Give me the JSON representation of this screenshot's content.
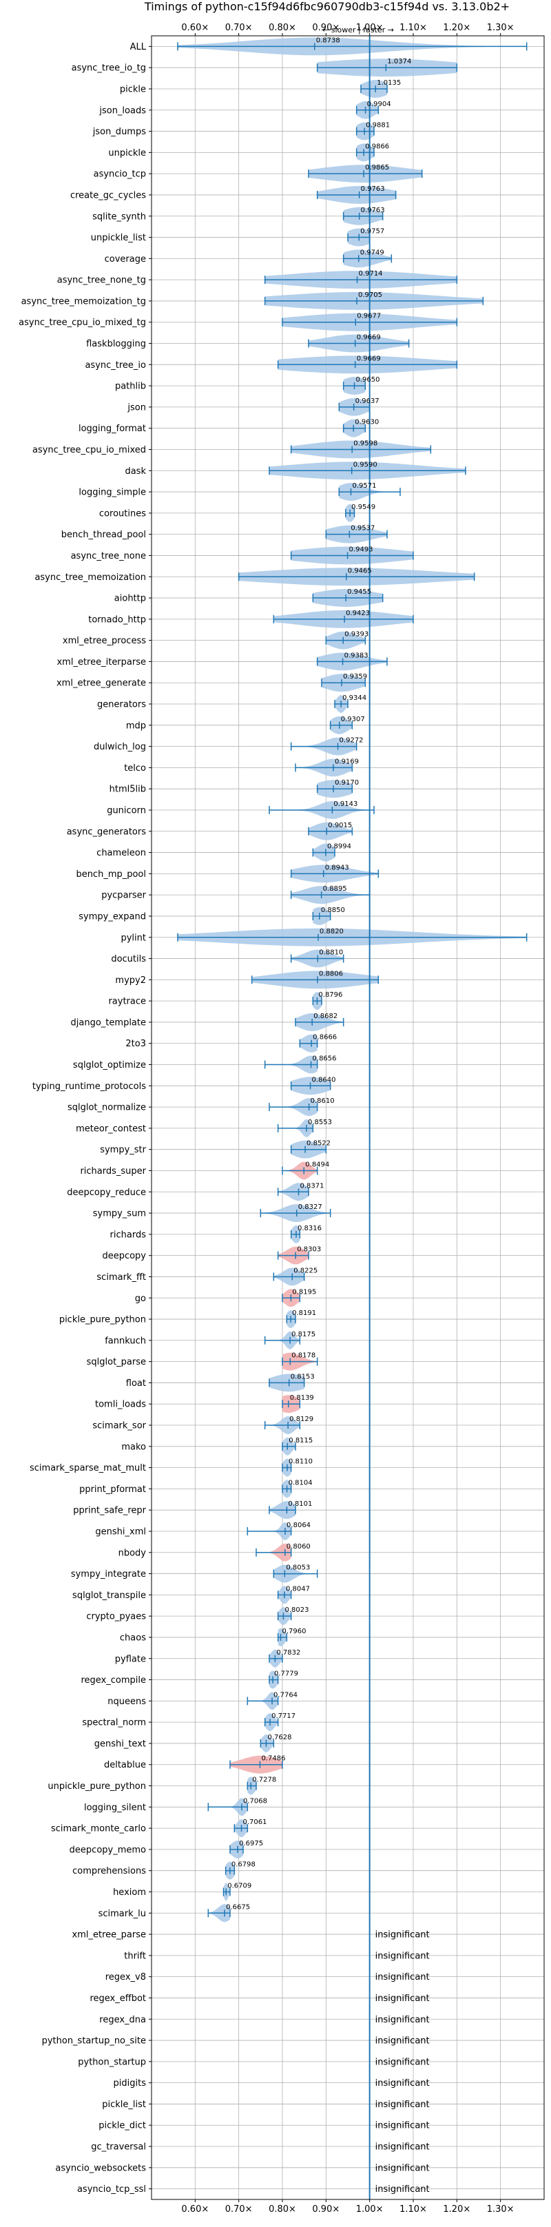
{
  "chart_data": {
    "type": "violin",
    "title": "Timings of python-c15f94d6fbc960790db3-c15f94d vs. 3.13.0b2+",
    "subtitle": "← slower | faster →",
    "xlim": [
      0.5,
      1.4
    ],
    "xticks": [
      0.6,
      0.7,
      0.8,
      0.9,
      1.0,
      1.1,
      1.2,
      1.3
    ],
    "xtick_labels": [
      "0.60×",
      "0.70×",
      "0.80×",
      "0.90×",
      "1.00×",
      "1.10×",
      "1.20×",
      "1.30×"
    ],
    "reference_line": 1.0,
    "grid": true,
    "colors": {
      "faster": "#a8c8e8",
      "slower": "#f2aaaa",
      "line": "#1f77b4",
      "grid": "#b0b0b0"
    },
    "insignificant_label": "insignificant",
    "benchmarks": [
      {
        "name": "ALL",
        "value": 0.8738,
        "label": "0.8738",
        "lo": 0.56,
        "hi": 1.36,
        "spread": 0.16,
        "sig": true
      },
      {
        "name": "async_tree_io_tg",
        "value": 1.0374,
        "label": "1.0374",
        "lo": 0.88,
        "hi": 1.2,
        "spread": 0.16,
        "sig": true
      },
      {
        "name": "pickle",
        "value": 1.0135,
        "label": "1.0135",
        "lo": 0.98,
        "hi": 1.04,
        "spread": 0.03,
        "sig": true
      },
      {
        "name": "json_loads",
        "value": 0.9904,
        "label": "0.9904",
        "lo": 0.97,
        "hi": 1.02,
        "spread": 0.02,
        "sig": true
      },
      {
        "name": "json_dumps",
        "value": 0.9881,
        "label": "0.9881",
        "lo": 0.97,
        "hi": 1.01,
        "spread": 0.02,
        "sig": true
      },
      {
        "name": "unpickle",
        "value": 0.9866,
        "label": "0.9866",
        "lo": 0.97,
        "hi": 1.01,
        "spread": 0.02,
        "sig": true
      },
      {
        "name": "asyncio_tcp",
        "value": 0.9865,
        "label": "0.9865",
        "lo": 0.86,
        "hi": 1.12,
        "spread": 0.1,
        "sig": true
      },
      {
        "name": "create_gc_cycles",
        "value": 0.9763,
        "label": "0.9763",
        "lo": 0.88,
        "hi": 1.06,
        "spread": 0.07,
        "sig": true
      },
      {
        "name": "sqlite_synth",
        "value": 0.9763,
        "label": "0.9763",
        "lo": 0.94,
        "hi": 1.03,
        "spread": 0.04,
        "sig": true
      },
      {
        "name": "unpickle_list",
        "value": 0.9757,
        "label": "0.9757",
        "lo": 0.95,
        "hi": 1.0,
        "spread": 0.03,
        "sig": true
      },
      {
        "name": "coverage",
        "value": 0.9749,
        "label": "0.9749",
        "lo": 0.94,
        "hi": 1.05,
        "spread": 0.04,
        "sig": true
      },
      {
        "name": "async_tree_none_tg",
        "value": 0.9714,
        "label": "0.9714",
        "lo": 0.76,
        "hi": 1.2,
        "spread": 0.16,
        "sig": true
      },
      {
        "name": "async_tree_memoization_tg",
        "value": 0.9705,
        "label": "0.9705",
        "lo": 0.76,
        "hi": 1.26,
        "spread": 0.18,
        "sig": true
      },
      {
        "name": "async_tree_cpu_io_mixed_tg",
        "value": 0.9677,
        "label": "0.9677",
        "lo": 0.8,
        "hi": 1.2,
        "spread": 0.14,
        "sig": true
      },
      {
        "name": "flaskblogging",
        "value": 0.9669,
        "label": "0.9669",
        "lo": 0.86,
        "hi": 1.09,
        "spread": 0.07,
        "sig": true
      },
      {
        "name": "async_tree_io",
        "value": 0.9669,
        "label": "0.9669",
        "lo": 0.79,
        "hi": 1.2,
        "spread": 0.17,
        "sig": true
      },
      {
        "name": "pathlib",
        "value": 0.965,
        "label": "0.9650",
        "lo": 0.94,
        "hi": 0.99,
        "spread": 0.03,
        "sig": true
      },
      {
        "name": "json",
        "value": 0.9637,
        "label": "0.9637",
        "lo": 0.93,
        "hi": 1.0,
        "spread": 0.03,
        "sig": true
      },
      {
        "name": "logging_format",
        "value": 0.963,
        "label": "0.9630",
        "lo": 0.94,
        "hi": 0.99,
        "spread": 0.02,
        "sig": true
      },
      {
        "name": "async_tree_cpu_io_mixed",
        "value": 0.9598,
        "label": "0.9598",
        "lo": 0.82,
        "hi": 1.14,
        "spread": 0.1,
        "sig": true
      },
      {
        "name": "dask",
        "value": 0.959,
        "label": "0.9590",
        "lo": 0.77,
        "hi": 1.22,
        "spread": 0.15,
        "sig": true
      },
      {
        "name": "logging_simple",
        "value": 0.9571,
        "label": "0.9571",
        "lo": 0.93,
        "hi": 1.07,
        "spread": 0.03,
        "sig": true
      },
      {
        "name": "coroutines",
        "value": 0.9549,
        "label": "0.9549",
        "lo": 0.945,
        "hi": 0.965,
        "spread": 0.01,
        "sig": true
      },
      {
        "name": "bench_thread_pool",
        "value": 0.9537,
        "label": "0.9537",
        "lo": 0.9,
        "hi": 1.04,
        "spread": 0.05,
        "sig": true
      },
      {
        "name": "async_tree_none",
        "value": 0.9493,
        "label": "0.9493",
        "lo": 0.82,
        "hi": 1.1,
        "spread": 0.12,
        "sig": true
      },
      {
        "name": "async_tree_memoization",
        "value": 0.9465,
        "label": "0.9465",
        "lo": 0.7,
        "hi": 1.24,
        "spread": 0.2,
        "sig": true
      },
      {
        "name": "aiohttp",
        "value": 0.9455,
        "label": "0.9455",
        "lo": 0.87,
        "hi": 1.03,
        "spread": 0.07,
        "sig": true
      },
      {
        "name": "tornado_http",
        "value": 0.9423,
        "label": "0.9423",
        "lo": 0.78,
        "hi": 1.1,
        "spread": 0.11,
        "sig": true
      },
      {
        "name": "xml_etree_process",
        "value": 0.9393,
        "label": "0.9393",
        "lo": 0.9,
        "hi": 0.99,
        "spread": 0.03,
        "sig": true
      },
      {
        "name": "xml_etree_iterparse",
        "value": 0.9383,
        "label": "0.9383",
        "lo": 0.88,
        "hi": 1.04,
        "spread": 0.05,
        "sig": true
      },
      {
        "name": "xml_etree_generate",
        "value": 0.9359,
        "label": "0.9359",
        "lo": 0.89,
        "hi": 0.99,
        "spread": 0.04,
        "sig": true
      },
      {
        "name": "generators",
        "value": 0.9344,
        "label": "0.9344",
        "lo": 0.92,
        "hi": 0.95,
        "spread": 0.01,
        "sig": true
      },
      {
        "name": "mdp",
        "value": 0.9307,
        "label": "0.9307",
        "lo": 0.91,
        "hi": 0.96,
        "spread": 0.02,
        "sig": true
      },
      {
        "name": "dulwich_log",
        "value": 0.9272,
        "label": "0.9272",
        "lo": 0.82,
        "hi": 0.97,
        "spread": 0.03,
        "sig": true
      },
      {
        "name": "telco",
        "value": 0.9169,
        "label": "0.9169",
        "lo": 0.83,
        "hi": 0.96,
        "spread": 0.03,
        "sig": true
      },
      {
        "name": "html5lib",
        "value": 0.917,
        "label": "0.9170",
        "lo": 0.88,
        "hi": 0.96,
        "spread": 0.04,
        "sig": true
      },
      {
        "name": "gunicorn",
        "value": 0.9143,
        "label": "0.9143",
        "lo": 0.77,
        "hi": 1.01,
        "spread": 0.03,
        "sig": true
      },
      {
        "name": "async_generators",
        "value": 0.9015,
        "label": "0.9015",
        "lo": 0.86,
        "hi": 0.96,
        "spread": 0.03,
        "sig": true
      },
      {
        "name": "chameleon",
        "value": 0.8994,
        "label": "0.8994",
        "lo": 0.87,
        "hi": 0.92,
        "spread": 0.02,
        "sig": true
      },
      {
        "name": "bench_mp_pool",
        "value": 0.8943,
        "label": "0.8943",
        "lo": 0.82,
        "hi": 1.02,
        "spread": 0.06,
        "sig": true
      },
      {
        "name": "pycparser",
        "value": 0.8895,
        "label": "0.8895",
        "lo": 0.82,
        "hi": 1.0,
        "spread": 0.04,
        "sig": true
      },
      {
        "name": "sympy_expand",
        "value": 0.885,
        "label": "0.8850",
        "lo": 0.87,
        "hi": 0.91,
        "spread": 0.02,
        "sig": true
      },
      {
        "name": "pylint",
        "value": 0.882,
        "label": "0.8820",
        "lo": 0.56,
        "hi": 1.36,
        "spread": 0.22,
        "sig": true
      },
      {
        "name": "docutils",
        "value": 0.881,
        "label": "0.8810",
        "lo": 0.82,
        "hi": 0.94,
        "spread": 0.03,
        "sig": true
      },
      {
        "name": "mypy2",
        "value": 0.8806,
        "label": "0.8806",
        "lo": 0.73,
        "hi": 1.02,
        "spread": 0.1,
        "sig": true
      },
      {
        "name": "raytrace",
        "value": 0.8796,
        "label": "0.8796",
        "lo": 0.87,
        "hi": 0.89,
        "spread": 0.01,
        "sig": true
      },
      {
        "name": "django_template",
        "value": 0.8682,
        "label": "0.8682",
        "lo": 0.83,
        "hi": 0.94,
        "spread": 0.03,
        "sig": true
      },
      {
        "name": "2to3",
        "value": 0.8666,
        "label": "0.8666",
        "lo": 0.84,
        "hi": 0.88,
        "spread": 0.02,
        "sig": true
      },
      {
        "name": "sqlglot_optimize",
        "value": 0.8656,
        "label": "0.8656",
        "lo": 0.76,
        "hi": 0.88,
        "spread": 0.02,
        "sig": true
      },
      {
        "name": "typing_runtime_protocols",
        "value": 0.864,
        "label": "0.8640",
        "lo": 0.82,
        "hi": 0.91,
        "spread": 0.04,
        "sig": true
      },
      {
        "name": "sqlglot_normalize",
        "value": 0.861,
        "label": "0.8610",
        "lo": 0.77,
        "hi": 0.88,
        "spread": 0.02,
        "sig": true
      },
      {
        "name": "meteor_contest",
        "value": 0.8553,
        "label": "0.8553",
        "lo": 0.79,
        "hi": 0.87,
        "spread": 0.01,
        "sig": true
      },
      {
        "name": "sympy_str",
        "value": 0.8522,
        "label": "0.8522",
        "lo": 0.82,
        "hi": 0.9,
        "spread": 0.03,
        "sig": true
      },
      {
        "name": "richards_super",
        "value": 0.8494,
        "label": "0.8494",
        "lo": 0.8,
        "hi": 0.88,
        "spread": 0.015,
        "sig": false
      },
      {
        "name": "deepcopy_reduce",
        "value": 0.8371,
        "label": "0.8371",
        "lo": 0.79,
        "hi": 0.86,
        "spread": 0.02,
        "sig": true
      },
      {
        "name": "sympy_sum",
        "value": 0.8327,
        "label": "0.8327",
        "lo": 0.75,
        "hi": 0.91,
        "spread": 0.03,
        "sig": true
      },
      {
        "name": "richards",
        "value": 0.8316,
        "label": "0.8316",
        "lo": 0.82,
        "hi": 0.84,
        "spread": 0.01,
        "sig": true
      },
      {
        "name": "deepcopy",
        "value": 0.8303,
        "label": "0.8303",
        "lo": 0.79,
        "hi": 0.86,
        "spread": 0.02,
        "sig": false
      },
      {
        "name": "scimark_fft",
        "value": 0.8225,
        "label": "0.8225",
        "lo": 0.78,
        "hi": 0.85,
        "spread": 0.02,
        "sig": true
      },
      {
        "name": "go",
        "value": 0.8195,
        "label": "0.8195",
        "lo": 0.8,
        "hi": 0.84,
        "spread": 0.015,
        "sig": false
      },
      {
        "name": "pickle_pure_python",
        "value": 0.8191,
        "label": "0.8191",
        "lo": 0.81,
        "hi": 0.83,
        "spread": 0.01,
        "sig": true
      },
      {
        "name": "fannkuch",
        "value": 0.8175,
        "label": "0.8175",
        "lo": 0.76,
        "hi": 0.84,
        "spread": 0.01,
        "sig": true
      },
      {
        "name": "sqlglot_parse",
        "value": 0.8178,
        "label": "0.8178",
        "lo": 0.8,
        "hi": 0.88,
        "spread": 0.025,
        "sig": false
      },
      {
        "name": "float",
        "value": 0.8153,
        "label": "0.8153",
        "lo": 0.77,
        "hi": 0.85,
        "spread": 0.04,
        "sig": true
      },
      {
        "name": "tomli_loads",
        "value": 0.8139,
        "label": "0.8139",
        "lo": 0.8,
        "hi": 0.84,
        "spread": 0.025,
        "sig": false
      },
      {
        "name": "scimark_sor",
        "value": 0.8129,
        "label": "0.8129",
        "lo": 0.76,
        "hi": 0.84,
        "spread": 0.015,
        "sig": true
      },
      {
        "name": "mako",
        "value": 0.8115,
        "label": "0.8115",
        "lo": 0.8,
        "hi": 0.83,
        "spread": 0.01,
        "sig": true
      },
      {
        "name": "scimark_sparse_mat_mult",
        "value": 0.811,
        "label": "0.8110",
        "lo": 0.8,
        "hi": 0.82,
        "spread": 0.01,
        "sig": true
      },
      {
        "name": "pprint_pformat",
        "value": 0.8104,
        "label": "0.8104",
        "lo": 0.8,
        "hi": 0.82,
        "spread": 0.01,
        "sig": true
      },
      {
        "name": "pprint_safe_repr",
        "value": 0.8101,
        "label": "0.8101",
        "lo": 0.77,
        "hi": 0.83,
        "spread": 0.02,
        "sig": true
      },
      {
        "name": "genshi_xml",
        "value": 0.8064,
        "label": "0.8064",
        "lo": 0.72,
        "hi": 0.82,
        "spread": 0.01,
        "sig": true
      },
      {
        "name": "nbody",
        "value": 0.806,
        "label": "0.8060",
        "lo": 0.74,
        "hi": 0.82,
        "spread": 0.015,
        "sig": false
      },
      {
        "name": "sympy_integrate",
        "value": 0.8053,
        "label": "0.8053",
        "lo": 0.78,
        "hi": 0.88,
        "spread": 0.02,
        "sig": true
      },
      {
        "name": "sqlglot_transpile",
        "value": 0.8047,
        "label": "0.8047",
        "lo": 0.79,
        "hi": 0.82,
        "spread": 0.01,
        "sig": true
      },
      {
        "name": "crypto_pyaes",
        "value": 0.8023,
        "label": "0.8023",
        "lo": 0.79,
        "hi": 0.82,
        "spread": 0.01,
        "sig": true
      },
      {
        "name": "chaos",
        "value": 0.796,
        "label": "0.7960",
        "lo": 0.79,
        "hi": 0.81,
        "spread": 0.01,
        "sig": true
      },
      {
        "name": "pyflate",
        "value": 0.7832,
        "label": "0.7832",
        "lo": 0.77,
        "hi": 0.8,
        "spread": 0.01,
        "sig": true
      },
      {
        "name": "regex_compile",
        "value": 0.7779,
        "label": "0.7779",
        "lo": 0.77,
        "hi": 0.79,
        "spread": 0.01,
        "sig": true
      },
      {
        "name": "nqueens",
        "value": 0.7764,
        "label": "0.7764",
        "lo": 0.72,
        "hi": 0.79,
        "spread": 0.01,
        "sig": true
      },
      {
        "name": "spectral_norm",
        "value": 0.7717,
        "label": "0.7717",
        "lo": 0.76,
        "hi": 0.79,
        "spread": 0.01,
        "sig": true
      },
      {
        "name": "genshi_text",
        "value": 0.7628,
        "label": "0.7628",
        "lo": 0.75,
        "hi": 0.78,
        "spread": 0.01,
        "sig": true
      },
      {
        "name": "deltablue",
        "value": 0.7486,
        "label": "0.7486",
        "lo": 0.68,
        "hi": 0.8,
        "spread": 0.04,
        "sig": false
      },
      {
        "name": "unpickle_pure_python",
        "value": 0.7278,
        "label": "0.7278",
        "lo": 0.72,
        "hi": 0.74,
        "spread": 0.01,
        "sig": true
      },
      {
        "name": "logging_silent",
        "value": 0.7068,
        "label": "0.7068",
        "lo": 0.63,
        "hi": 0.72,
        "spread": 0.01,
        "sig": true
      },
      {
        "name": "scimark_monte_carlo",
        "value": 0.7061,
        "label": "0.7061",
        "lo": 0.69,
        "hi": 0.72,
        "spread": 0.01,
        "sig": true
      },
      {
        "name": "deepcopy_memo",
        "value": 0.6975,
        "label": "0.6975",
        "lo": 0.68,
        "hi": 0.71,
        "spread": 0.015,
        "sig": true
      },
      {
        "name": "comprehensions",
        "value": 0.6798,
        "label": "0.6798",
        "lo": 0.67,
        "hi": 0.69,
        "spread": 0.01,
        "sig": true
      },
      {
        "name": "hexiom",
        "value": 0.6709,
        "label": "0.6709",
        "lo": 0.665,
        "hi": 0.68,
        "spread": 0.005,
        "sig": true
      },
      {
        "name": "scimark_lu",
        "value": 0.6675,
        "label": "0.6675",
        "lo": 0.63,
        "hi": 0.68,
        "spread": 0.015,
        "sig": true
      }
    ],
    "insignificant": [
      "xml_etree_parse",
      "thrift",
      "regex_v8",
      "regex_effbot",
      "regex_dna",
      "python_startup_no_site",
      "python_startup",
      "pidigits",
      "pickle_list",
      "pickle_dict",
      "gc_traversal",
      "asyncio_websockets",
      "asyncio_tcp_ssl"
    ]
  }
}
